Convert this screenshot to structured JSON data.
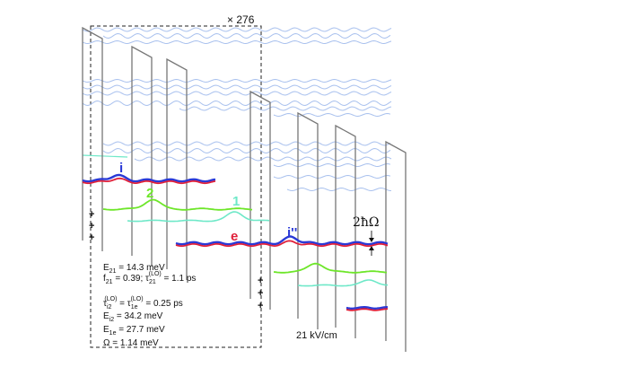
{
  "magnification": "× 276",
  "field": "21 kV/cm",
  "energy_gap": "2ħΩ",
  "levels": {
    "i": "i",
    "two": "2",
    "one": "1",
    "e": "e",
    "i2": "i''"
  },
  "params": [
    {
      "main": "E",
      "sub": "21",
      "rest": " = 14.3 meV"
    },
    {
      "main": "f",
      "sub": "21",
      "rest": " = 0.39;  τ"
    },
    {
      "main": "τ",
      "sub": "i2",
      "rest": " = τ"
    },
    {
      "main": "E",
      "sub": "i2",
      "rest": " = 34.2 meV"
    },
    {
      "main": "E",
      "sub": "1e",
      "rest": " = 27.7 meV"
    },
    {
      "main": "Ω",
      "sub": "",
      "rest": " = 1.14 meV"
    }
  ],
  "param_extra": {
    "tau21": "21",
    "tau21_sup": "(LO)",
    "tau21_val": " = 1.1 ps",
    "tau_sup": "(LO)",
    "tau1e": "1e",
    "tau1e_sup": "(LO)",
    "tau1e_val": " = 0.25 ps"
  },
  "plus": "+",
  "colors": {
    "blue": "#2a39d6",
    "red": "#e0203a",
    "green": "#6ee62a",
    "cyan": "#6ee8c8",
    "light_blue": "#a9c1ee",
    "barrier": "#777777"
  }
}
